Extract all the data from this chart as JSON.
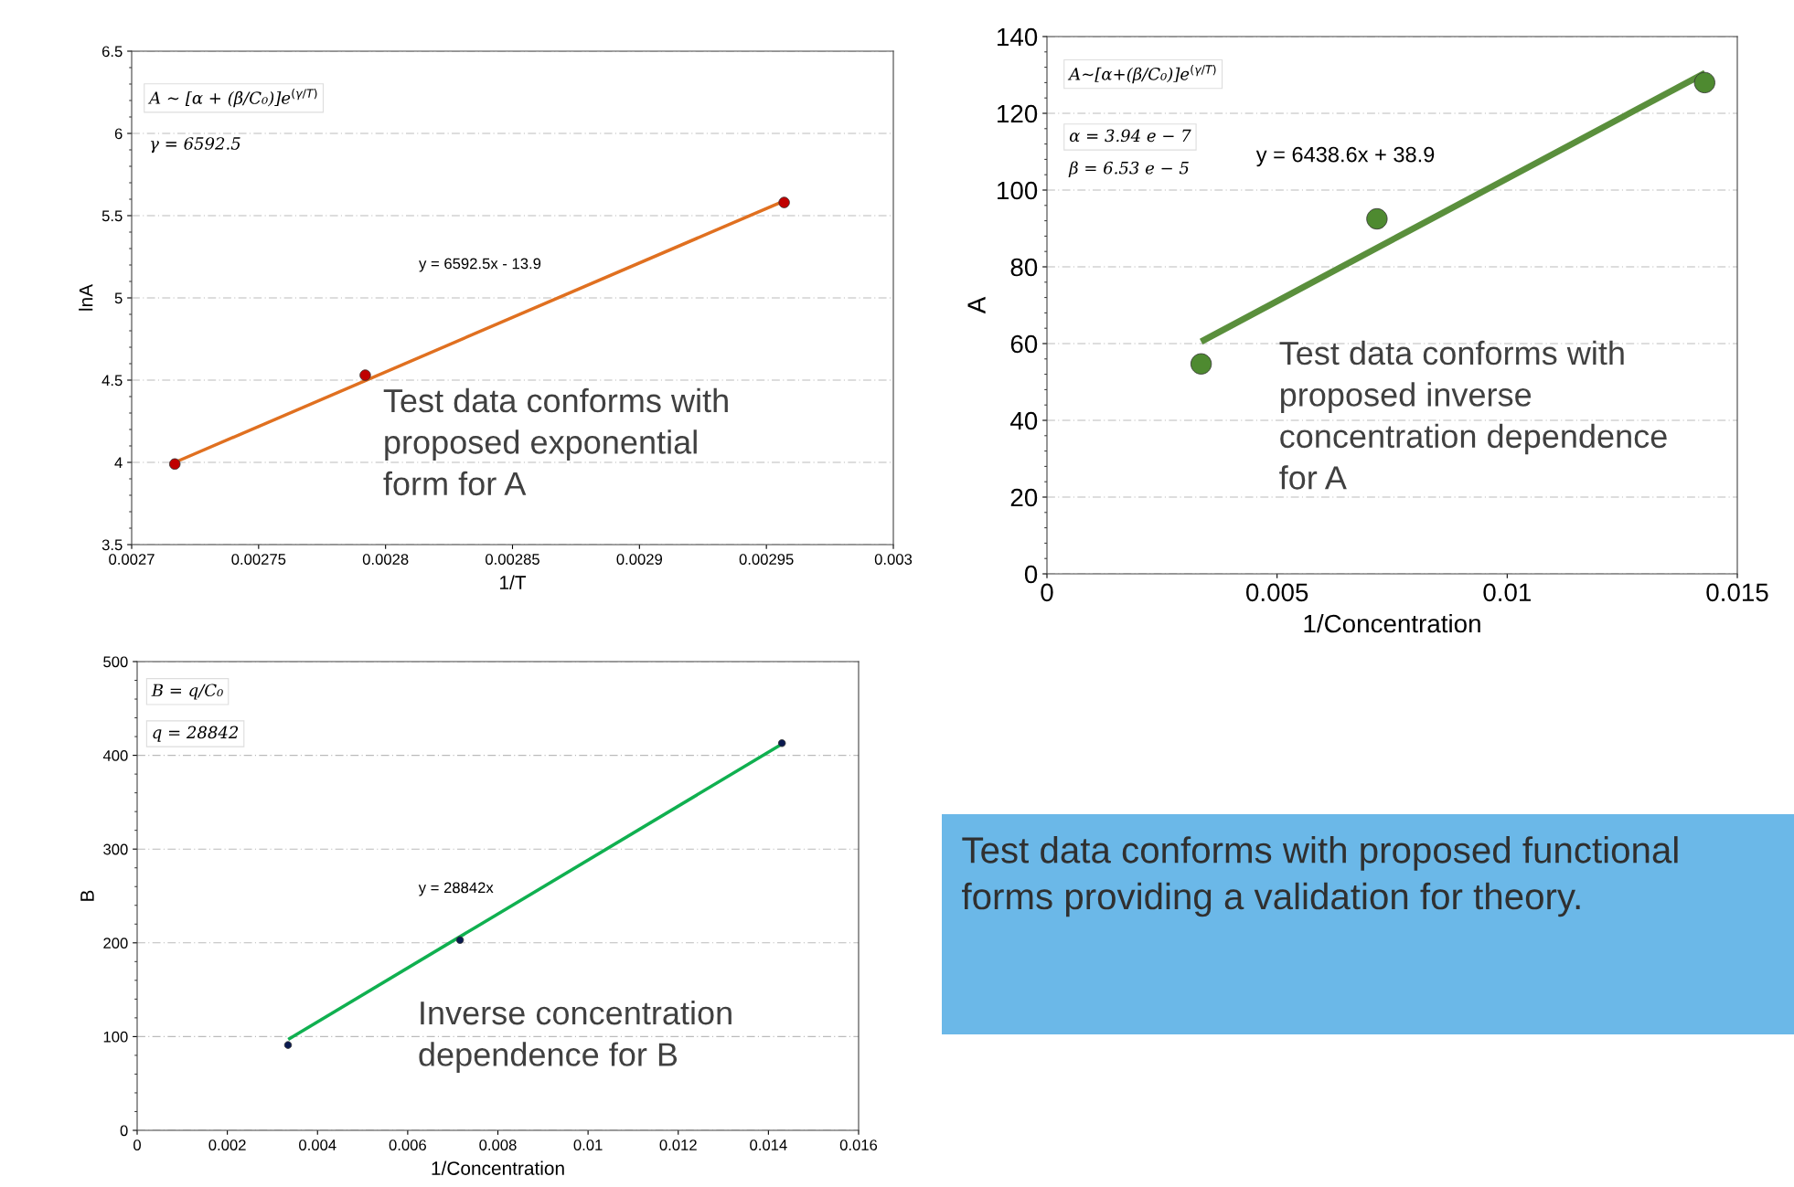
{
  "chart_data": [
    {
      "type": "scatter",
      "xlabel": "1/T",
      "ylabel": "lnA",
      "xlim": [
        0.0027,
        0.003
      ],
      "xticks": [
        0.0027,
        0.00275,
        0.0028,
        0.00285,
        0.0029,
        0.00295,
        0.003
      ],
      "ylim": [
        3.5,
        6.5
      ],
      "yticks": [
        3.5,
        4,
        4.5,
        5,
        5.5,
        6,
        6.5
      ],
      "grid": "y",
      "series": [
        {
          "type": "scatter",
          "marker": "circle",
          "color": "#c00000",
          "x": [
            0.002717,
            0.002792,
            0.002957
          ],
          "values": [
            3.99,
            4.53,
            5.58
          ]
        },
        {
          "type": "line",
          "marker": "none",
          "color": "#e07020",
          "x": [
            0.002717,
            0.002957
          ],
          "values": [
            4.0,
            5.59
          ]
        }
      ],
      "annotations": [
        "A ~ [α + (β/C₀)]e$^{(γ/T)}$",
        "γ = 6592.5",
        "y = 6592.5x - 13.9",
        "Test data conforms with proposed exponential form for A"
      ]
    },
    {
      "type": "scatter",
      "xlabel": "1/Concentration",
      "ylabel": "A",
      "xlim": [
        0,
        0.015
      ],
      "xticks": [
        0,
        0.005,
        0.01,
        0.015
      ],
      "ylim": [
        0,
        140
      ],
      "yticks": [
        0,
        20,
        40,
        60,
        80,
        100,
        120,
        140
      ],
      "grid": "y",
      "series": [
        {
          "type": "scatter",
          "marker": "circle",
          "color": "#4e8a30",
          "x": [
            0.00335,
            0.00717,
            0.01429
          ],
          "values": [
            54.7,
            92.5,
            128
          ]
        },
        {
          "type": "line",
          "marker": "none",
          "color": "#5a8f3c",
          "x": [
            0.00335,
            0.0143
          ],
          "values": [
            60.5,
            130.5
          ]
        }
      ],
      "annotations": [
        "A~[α+(β/C₀)]e$^{(γ/T)}$",
        "α = 3.94 e − 7",
        "β = 6.53 e − 5",
        "y = 6438.6x + 38.9",
        "Test data conforms with proposed inverse concentration dependence for A"
      ]
    },
    {
      "type": "scatter",
      "xlabel": "1/Concentration",
      "ylabel": "B",
      "xlim": [
        0,
        0.016
      ],
      "xticks": [
        0,
        0.002,
        0.004,
        0.006,
        0.008,
        0.01,
        0.012,
        0.014,
        0.016
      ],
      "ylim": [
        0,
        500
      ],
      "yticks": [
        0,
        100,
        200,
        300,
        400,
        500
      ],
      "grid": "y",
      "series": [
        {
          "type": "scatter",
          "marker": "circle",
          "color": "#0a1a50",
          "x": [
            0.003346,
            0.00716,
            0.0143
          ],
          "values": [
            91,
            203,
            413
          ]
        },
        {
          "type": "line",
          "marker": "none",
          "color": "#10b050",
          "x": [
            0.00335,
            0.0143
          ],
          "values": [
            97,
            412
          ]
        }
      ],
      "annotations": [
        "B = q/C₀",
        "q = 28842",
        "y = 28842x",
        "Inverse concentration dependence for B"
      ]
    },
    {
      "type": "other",
      "annotations": [
        "Test data conforms with proposed functional forms providing a validation for theory."
      ]
    }
  ]
}
